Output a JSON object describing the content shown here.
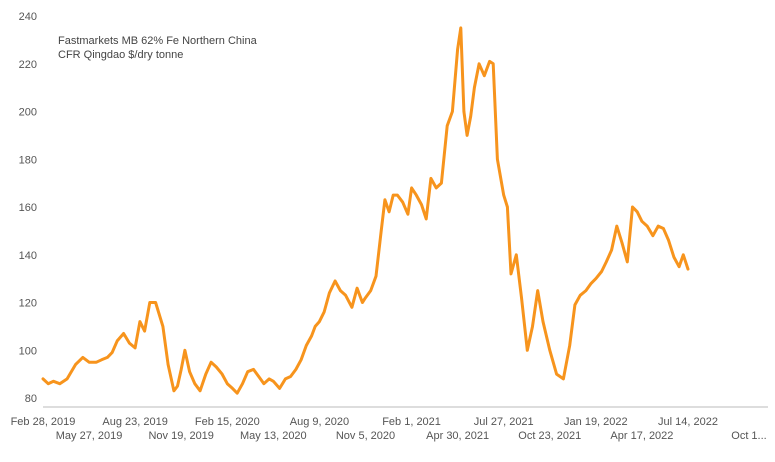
{
  "chart_data": {
    "type": "line",
    "title": "",
    "xlabel": "",
    "ylabel": "",
    "legend": [
      "Fastmarkets MB 62% Fe Northern China",
      "CFR Qingdao $/dry tonne"
    ],
    "legend_position": "top-left",
    "grid": false,
    "ylim": [
      80,
      240
    ],
    "y_ticks": [
      80,
      100,
      120,
      140,
      160,
      180,
      200,
      220,
      240
    ],
    "x_tick_labels_row1": [
      "Feb 28, 2019",
      "Aug 23, 2019",
      "Feb 15, 2020",
      "Aug 9, 2020",
      "Feb 1, 2021",
      "Jul 27, 2021",
      "Jan 19, 2022",
      "Jul 14, 2022"
    ],
    "x_tick_labels_row2": [
      "May 27, 2019",
      "Nov 19, 2019",
      "May 13, 2020",
      "Nov 5, 2020",
      "Apr 30, 2021",
      "Oct 23, 2021",
      "Apr 17, 2022",
      "Oct 1..."
    ],
    "line_color": "#F7941D",
    "series": [
      {
        "name": "Fastmarkets MB 62% Fe Northern China CFR Qingdao $/dry tonne",
        "x": [
          "2019-02-28",
          "2019-03-10",
          "2019-03-20",
          "2019-04-01",
          "2019-04-15",
          "2019-05-01",
          "2019-05-15",
          "2019-05-27",
          "2019-06-10",
          "2019-06-20",
          "2019-07-01",
          "2019-07-10",
          "2019-07-20",
          "2019-08-01",
          "2019-08-12",
          "2019-08-23",
          "2019-09-01",
          "2019-09-10",
          "2019-09-20",
          "2019-10-01",
          "2019-10-15",
          "2019-10-25",
          "2019-11-05",
          "2019-11-12",
          "2019-11-19",
          "2019-11-26",
          "2019-12-05",
          "2019-12-15",
          "2019-12-25",
          "2020-01-05",
          "2020-01-15",
          "2020-01-25",
          "2020-02-05",
          "2020-02-15",
          "2020-02-25",
          "2020-03-05",
          "2020-03-15",
          "2020-03-25",
          "2020-04-05",
          "2020-04-15",
          "2020-04-25",
          "2020-05-05",
          "2020-05-13",
          "2020-05-25",
          "2020-06-05",
          "2020-06-15",
          "2020-06-25",
          "2020-07-05",
          "2020-07-15",
          "2020-07-25",
          "2020-08-01",
          "2020-08-09",
          "2020-08-18",
          "2020-08-28",
          "2020-09-08",
          "2020-09-18",
          "2020-09-28",
          "2020-10-10",
          "2020-10-20",
          "2020-10-30",
          "2020-11-05",
          "2020-11-15",
          "2020-11-25",
          "2020-12-05",
          "2020-12-12",
          "2020-12-20",
          "2020-12-28",
          "2021-01-05",
          "2021-01-15",
          "2021-01-25",
          "2021-02-01",
          "2021-02-10",
          "2021-02-20",
          "2021-03-01",
          "2021-03-10",
          "2021-03-20",
          "2021-03-30",
          "2021-04-10",
          "2021-04-20",
          "2021-04-30",
          "2021-05-06",
          "2021-05-12",
          "2021-05-18",
          "2021-05-25",
          "2021-06-01",
          "2021-06-10",
          "2021-06-20",
          "2021-06-30",
          "2021-07-07",
          "2021-07-15",
          "2021-07-27",
          "2021-08-03",
          "2021-08-10",
          "2021-08-20",
          "2021-08-30",
          "2021-09-10",
          "2021-09-20",
          "2021-09-30",
          "2021-10-10",
          "2021-10-23",
          "2021-11-05",
          "2021-11-18",
          "2021-11-30",
          "2021-12-10",
          "2021-12-20",
          "2021-12-31",
          "2022-01-10",
          "2022-01-19",
          "2022-01-30",
          "2022-02-08",
          "2022-02-18",
          "2022-02-28",
          "2022-03-10",
          "2022-03-20",
          "2022-03-30",
          "2022-04-08",
          "2022-04-17",
          "2022-04-27",
          "2022-05-08",
          "2022-05-18",
          "2022-05-28",
          "2022-06-07",
          "2022-06-17",
          "2022-06-27",
          "2022-07-05",
          "2022-07-14"
        ],
        "values": [
          88,
          86,
          87,
          86,
          88,
          94,
          97,
          95,
          95,
          96,
          97,
          99,
          104,
          107,
          103,
          101,
          112,
          108,
          120,
          120,
          110,
          94,
          83,
          85,
          92,
          100,
          91,
          86,
          83,
          90,
          95,
          93,
          90,
          86,
          84,
          82,
          86,
          91,
          92,
          89,
          86,
          88,
          87,
          84,
          88,
          89,
          92,
          96,
          102,
          106,
          110,
          112,
          116,
          124,
          129,
          125,
          123,
          118,
          126,
          120,
          122,
          125,
          131,
          150,
          163,
          158,
          165,
          165,
          162,
          157,
          168,
          165,
          161,
          155,
          172,
          168,
          170,
          194,
          200,
          226,
          235,
          200,
          190,
          198,
          210,
          220,
          215,
          221,
          220,
          180,
          165,
          160,
          132,
          140,
          122,
          100,
          110,
          125,
          112,
          100,
          90,
          88,
          102,
          119,
          123,
          125,
          128,
          130,
          133,
          137,
          142,
          152,
          145,
          137,
          160,
          158,
          154,
          152,
          148,
          152,
          151,
          146,
          139,
          135,
          140,
          134
        ]
      }
    ]
  }
}
